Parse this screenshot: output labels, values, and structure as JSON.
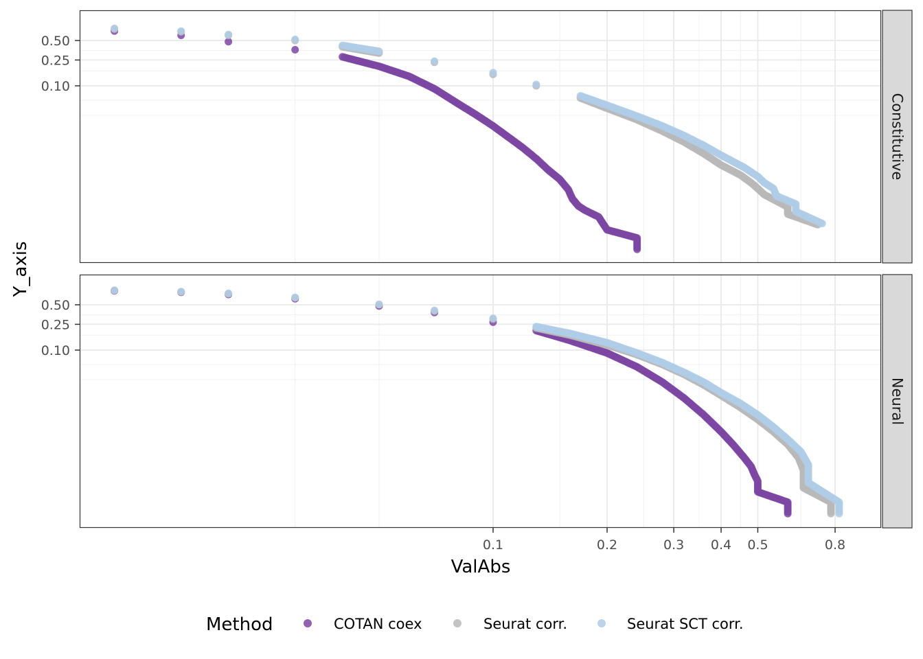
{
  "chart_data": {
    "type": "scatter",
    "xlabel": "ValAbs",
    "ylabel": "Y_axis",
    "x_scale": "log10",
    "y_scale": "log10",
    "x_ticks": [
      0.1,
      0.2,
      0.3,
      0.4,
      0.5,
      0.8
    ],
    "x_tick_labels": [
      "0.1",
      "0.2",
      "0.3",
      "0.4",
      "0.5",
      "0.8"
    ],
    "y_ticks": [
      0.5,
      0.25,
      0.1
    ],
    "y_tick_labels": [
      "0.50",
      "0.25",
      "0.10"
    ],
    "grid": true,
    "legend": {
      "title": "Method",
      "position": "bottom",
      "entries": [
        {
          "label": "COTAN coex",
          "color": "#7d46a3"
        },
        {
          "label": "Seurat corr.",
          "color": "#b8b8b8"
        },
        {
          "label": "Seurat SCT corr.",
          "color": "#b0cde6"
        }
      ]
    },
    "facets": [
      {
        "label": "Constitutive",
        "series": [
          {
            "name": "COTAN coex",
            "x": [
              0.007,
              0.01,
              0.015,
              0.02,
              0.03,
              0.04,
              0.05,
              0.06,
              0.07,
              0.08,
              0.09,
              0.1,
              0.11,
              0.12,
              0.13,
              0.14,
              0.15,
              0.158,
              0.162,
              0.168,
              0.175,
              0.19,
              0.195,
              0.2,
              0.24,
              0.24
            ],
            "y": [
              0.8,
              0.7,
              0.6,
              0.48,
              0.36,
              0.28,
              0.2,
              0.14,
              0.09,
              0.055,
              0.036,
              0.024,
              0.016,
              0.011,
              0.0075,
              0.005,
              0.0036,
              0.0025,
              0.0018,
              0.0014,
              0.0012,
              0.00095,
              0.00075,
              0.0006,
              0.00045,
              0.0003
            ]
          },
          {
            "name": "Seurat corr.",
            "x": [
              0.007,
              0.01,
              0.015,
              0.02,
              0.03,
              0.04,
              0.05,
              0.07,
              0.1,
              0.13,
              0.17,
              0.2,
              0.24,
              0.28,
              0.32,
              0.36,
              0.4,
              0.45,
              0.48,
              0.5,
              0.52,
              0.6,
              0.6,
              0.72
            ],
            "y": [
              0.82,
              0.75,
              0.68,
              0.6,
              0.5,
              0.4,
              0.32,
              0.23,
              0.15,
              0.1,
              0.065,
              0.045,
              0.03,
              0.02,
              0.0135,
              0.009,
              0.006,
              0.0042,
              0.0032,
              0.0026,
              0.0021,
              0.00135,
              0.00105,
              0.00072
            ]
          },
          {
            "name": "Seurat SCT corr.",
            "x": [
              0.007,
              0.01,
              0.015,
              0.02,
              0.03,
              0.04,
              0.05,
              0.07,
              0.1,
              0.13,
              0.17,
              0.2,
              0.24,
              0.28,
              0.32,
              0.36,
              0.4,
              0.46,
              0.5,
              0.52,
              0.55,
              0.56,
              0.63,
              0.63,
              0.74
            ],
            "y": [
              0.84,
              0.77,
              0.7,
              0.62,
              0.52,
              0.42,
              0.34,
              0.24,
              0.16,
              0.105,
              0.07,
              0.05,
              0.034,
              0.024,
              0.017,
              0.012,
              0.0085,
              0.0055,
              0.004,
              0.0032,
              0.0026,
              0.002,
              0.0015,
              0.00115,
              0.00075
            ]
          }
        ]
      },
      {
        "label": "Neural",
        "series": [
          {
            "name": "COTAN coex",
            "x": [
              0.007,
              0.01,
              0.015,
              0.02,
              0.03,
              0.05,
              0.07,
              0.1,
              0.13,
              0.16,
              0.2,
              0.24,
              0.28,
              0.32,
              0.36,
              0.4,
              0.43,
              0.46,
              0.48,
              0.49,
              0.5,
              0.5,
              0.5,
              0.6,
              0.6
            ],
            "y": [
              0.85,
              0.82,
              0.78,
              0.72,
              0.62,
              0.48,
              0.38,
              0.27,
              0.2,
              0.14,
              0.09,
              0.055,
              0.032,
              0.018,
              0.01,
              0.0055,
              0.0035,
              0.0022,
              0.0016,
              0.0012,
              0.00095,
              0.0008,
              0.00065,
              0.00045,
              0.0003
            ]
          },
          {
            "name": "Seurat corr.",
            "x": [
              0.007,
              0.01,
              0.015,
              0.02,
              0.03,
              0.05,
              0.07,
              0.1,
              0.13,
              0.16,
              0.2,
              0.24,
              0.28,
              0.32,
              0.36,
              0.4,
              0.45,
              0.5,
              0.55,
              0.6,
              0.64,
              0.66,
              0.66,
              0.66,
              0.78,
              0.78
            ],
            "y": [
              0.86,
              0.83,
              0.79,
              0.74,
              0.64,
              0.5,
              0.4,
              0.3,
              0.22,
              0.17,
              0.12,
              0.085,
              0.06,
              0.042,
              0.029,
              0.02,
              0.013,
              0.0085,
              0.0055,
              0.0035,
              0.0022,
              0.0014,
              0.001,
              0.00075,
              0.00045,
              0.0003
            ]
          },
          {
            "name": "Seurat SCT corr.",
            "x": [
              0.007,
              0.01,
              0.015,
              0.02,
              0.03,
              0.05,
              0.07,
              0.1,
              0.13,
              0.16,
              0.2,
              0.24,
              0.28,
              0.32,
              0.36,
              0.4,
              0.45,
              0.5,
              0.55,
              0.6,
              0.65,
              0.68,
              0.68,
              0.68,
              0.82,
              0.82
            ],
            "y": [
              0.87,
              0.84,
              0.8,
              0.75,
              0.65,
              0.51,
              0.41,
              0.31,
              0.23,
              0.18,
              0.13,
              0.09,
              0.064,
              0.045,
              0.032,
              0.022,
              0.015,
              0.01,
              0.0065,
              0.0042,
              0.0027,
              0.0017,
              0.0012,
              0.0009,
              0.00045,
              0.0003
            ]
          }
        ]
      }
    ]
  }
}
